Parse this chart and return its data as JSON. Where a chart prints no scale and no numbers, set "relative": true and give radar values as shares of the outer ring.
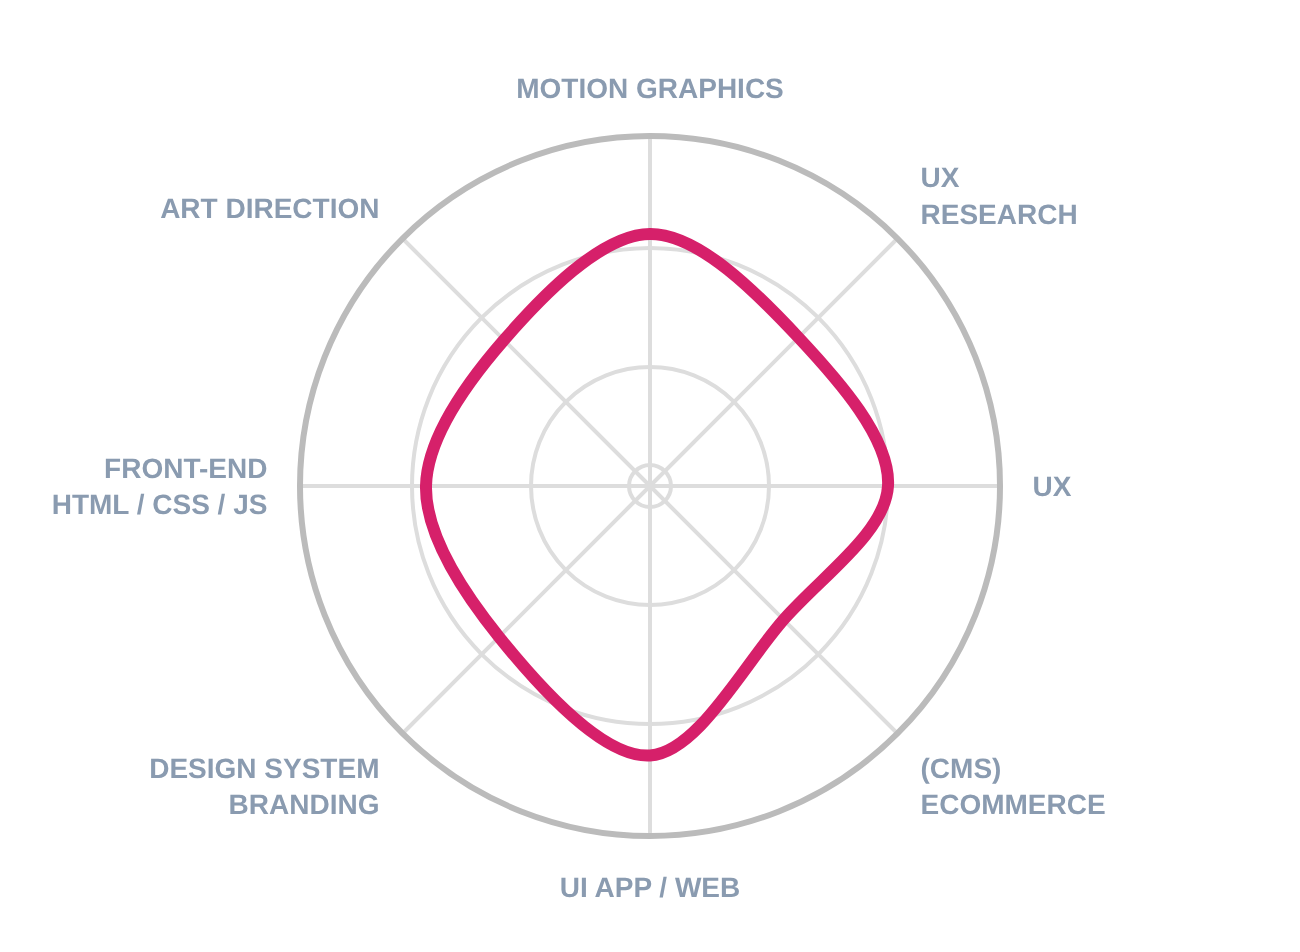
{
  "chart_data": {
    "type": "radar",
    "relative": true,
    "grid": true,
    "categories": [
      "MOTION GRAPHICS",
      "UX\nRESEARCH",
      "UX",
      "(CMS)\nECOMMERCE",
      "UI APP / WEB",
      "DESIGN SYSTEM\nBRANDING",
      "FRONT-END\nHTML / CSS / JS",
      "ART DIRECTION"
    ],
    "series": [
      {
        "color": "#d6206a",
        "line_style": "solid",
        "marker": "none",
        "values": [
          0.72,
          0.6,
          0.68,
          0.54,
          0.77,
          0.61,
          0.64,
          0.59
        ]
      }
    ]
  }
}
